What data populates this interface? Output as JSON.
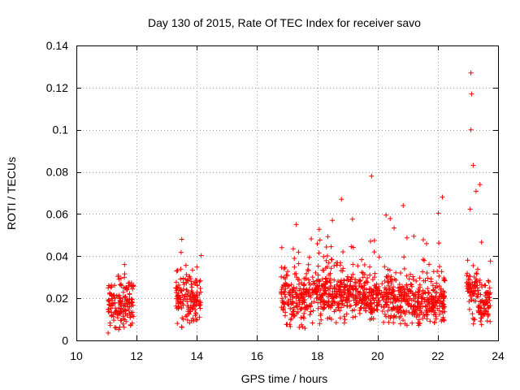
{
  "chart_data": {
    "type": "scatter",
    "title": "Day 130 of 2015, Rate Of TEC Index for receiver savo",
    "xlabel": "GPS time / hours",
    "ylabel": "ROTI / TECUs",
    "xlim": [
      10,
      24
    ],
    "ylim": [
      0,
      0.14
    ],
    "x_ticks": [
      10,
      12,
      14,
      16,
      18,
      20,
      22,
      24
    ],
    "x_tick_labels": [
      "10",
      "12",
      "14",
      "16",
      "18",
      "20",
      "22",
      "24"
    ],
    "y_ticks": [
      0,
      0.02,
      0.04,
      0.06,
      0.08,
      0.1,
      0.12,
      0.14
    ],
    "y_tick_labels": [
      "0",
      "0.02",
      "0.04",
      "0.06",
      "0.08",
      "0.1",
      "0.12",
      "0.14"
    ],
    "grid": true,
    "marker": "+",
    "marker_color": "#ff0000",
    "series": [
      {
        "name": "ROTI",
        "segments": [
          {
            "x_start": 11.05,
            "x_end": 11.9,
            "y_min": 0.003,
            "y_max": 0.036,
            "typical": 0.017
          },
          {
            "x_start": 13.3,
            "x_end": 14.15,
            "y_min": 0.006,
            "y_max": 0.048,
            "typical": 0.02
          },
          {
            "x_start": 16.8,
            "x_end": 17.6,
            "y_min": 0.005,
            "y_max": 0.055,
            "typical": 0.02
          },
          {
            "x_start": 17.6,
            "x_end": 18.6,
            "y_min": 0.007,
            "y_max": 0.057,
            "typical": 0.022
          },
          {
            "x_start": 18.6,
            "x_end": 19.6,
            "y_min": 0.007,
            "y_max": 0.067,
            "typical": 0.022
          },
          {
            "x_start": 19.6,
            "x_end": 20.5,
            "y_min": 0.008,
            "y_max": 0.078,
            "typical": 0.02
          },
          {
            "x_start": 20.5,
            "x_end": 21.4,
            "y_min": 0.007,
            "y_max": 0.064,
            "typical": 0.018
          },
          {
            "x_start": 21.4,
            "x_end": 22.25,
            "y_min": 0.008,
            "y_max": 0.068,
            "typical": 0.018
          },
          {
            "x_start": 22.95,
            "x_end": 23.3,
            "y_min": 0.007,
            "y_max": 0.127,
            "typical": 0.025
          },
          {
            "x_start": 23.3,
            "x_end": 23.75,
            "y_min": 0.007,
            "y_max": 0.074,
            "typical": 0.02
          }
        ],
        "notable_points": [
          {
            "x": 23.1,
            "y": 0.127
          },
          {
            "x": 23.12,
            "y": 0.117
          },
          {
            "x": 23.1,
            "y": 0.1
          },
          {
            "x": 19.8,
            "y": 0.078
          },
          {
            "x": 23.4,
            "y": 0.074
          },
          {
            "x": 22.15,
            "y": 0.068
          },
          {
            "x": 18.8,
            "y": 0.067
          },
          {
            "x": 20.85,
            "y": 0.064
          },
          {
            "x": 18.5,
            "y": 0.057
          },
          {
            "x": 17.3,
            "y": 0.055
          },
          {
            "x": 13.5,
            "y": 0.048
          },
          {
            "x": 11.6,
            "y": 0.036
          }
        ]
      }
    ]
  }
}
